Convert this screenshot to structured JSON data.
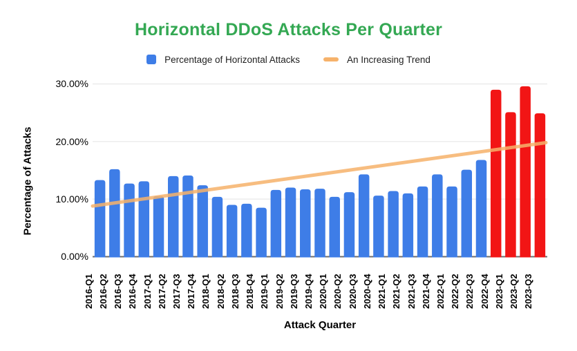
{
  "chart": {
    "colors": {
      "title": "#34a853",
      "bar_blue": "#3e7de7",
      "bar_red": "#f21515",
      "trend_orange": "#f6b26b",
      "gridline": "#e3e3e3",
      "axis_line": "#6b6b6b",
      "text": "#000000"
    }
  },
  "chart_data": {
    "type": "bar",
    "title": "Horizontal DDoS Attacks Per Quarter",
    "xlabel": "Attack Quarter",
    "ylabel": "Percentage of Attacks",
    "ylim": [
      0,
      30
    ],
    "ytick_labels": [
      "30.00%",
      "20.00%",
      "10.00%",
      "0.00%"
    ],
    "grid": true,
    "legend_position": "top",
    "categories": [
      "2016-Q1",
      "2016-Q2",
      "2016-Q3",
      "2016-Q4",
      "2017-Q1",
      "2017-Q2",
      "2017-Q3",
      "2017-Q4",
      "2018-Q1",
      "2018-Q2",
      "2018-Q3",
      "2018-Q4",
      "2019-Q1",
      "2019-Q2",
      "2019-Q3",
      "2019-Q4",
      "2020-Q1",
      "2020-Q2",
      "2020-Q3",
      "2020-Q4",
      "2021-Q1",
      "2021-Q2",
      "2021-Q3",
      "2021-Q4",
      "2022-Q1",
      "2022-Q2",
      "2022-Q3",
      "2022-Q4",
      "2023-Q1",
      "2023-Q2",
      "2023-Q3"
    ],
    "series": [
      {
        "name": "Percentage of Horizontal Attacks",
        "type": "bar",
        "values": [
          13.3,
          15.2,
          12.7,
          13.1,
          10.5,
          14.0,
          14.1,
          12.4,
          10.4,
          9.0,
          9.2,
          8.5,
          11.6,
          12.0,
          11.7,
          11.8,
          10.4,
          11.2,
          14.3,
          10.6,
          11.4,
          11.0,
          12.2,
          14.3,
          12.2,
          15.1,
          16.8,
          29.0,
          25.1,
          29.6,
          24.9
        ],
        "color": "#3e7de7",
        "highlight_color": "#f21515",
        "highlight_categories": [
          "2022-Q4",
          "2023-Q1",
          "2023-Q2",
          "2023-Q3"
        ]
      },
      {
        "name": "An Increasing Trend",
        "type": "line",
        "trend_start_percent": 8.8,
        "trend_end_percent": 19.8,
        "color": "#f6b26b"
      }
    ]
  }
}
